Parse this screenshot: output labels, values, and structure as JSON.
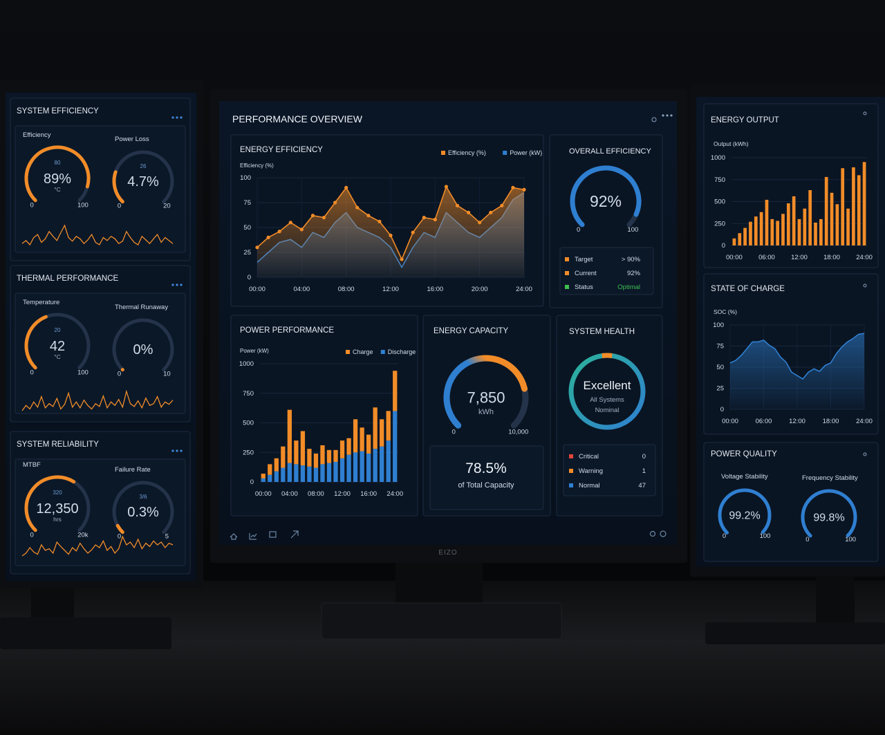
{
  "brand": "EIZO",
  "left_panels": [
    {
      "title": "SYSTEM EFFICIENCY",
      "gauges": [
        {
          "label": "Efficiency",
          "top_label": "80",
          "value": 89,
          "value_label": "89%",
          "unit": "°C",
          "min": 0,
          "max": 100,
          "color": "#f28c28"
        },
        {
          "label": "Power Loss",
          "top_label": "26",
          "value": 4.7,
          "value_label": "4.7%",
          "min": 0,
          "max": 20,
          "color": "#f28c28"
        }
      ],
      "sparkline": [
        40,
        45,
        38,
        50,
        55,
        42,
        48,
        60,
        52,
        45,
        58,
        70,
        50,
        44,
        52,
        48,
        40,
        46,
        55,
        42,
        38,
        50,
        45,
        52,
        48,
        40,
        44,
        60,
        50,
        42,
        38,
        52,
        46,
        40,
        48,
        55,
        42,
        50,
        45,
        40
      ],
      "color": "#f28c28"
    },
    {
      "title": "THERMAL PERFORMANCE",
      "gauges": [
        {
          "label": "Temperature",
          "top_label": "20",
          "value": 42,
          "unit": "°C",
          "min": 0,
          "max": 100,
          "color": "#f28c28"
        },
        {
          "label": "Thermal Runaway",
          "value": 0,
          "value_label": "0%",
          "min": 0,
          "max": 10,
          "color": "#f28c28"
        }
      ],
      "sparkline": [
        30,
        45,
        35,
        55,
        40,
        70,
        38,
        50,
        42,
        65,
        35,
        48,
        80,
        40,
        55,
        38,
        60,
        45,
        35,
        50,
        42,
        72,
        38,
        55,
        45,
        62,
        40,
        85,
        50,
        42,
        58,
        38,
        66,
        45,
        50,
        70,
        40,
        55,
        48,
        60
      ],
      "color": "#f28c28"
    },
    {
      "title": "SYSTEM RELIABILITY",
      "gauges": [
        {
          "label": "MTBF",
          "top_label": "320",
          "value": 12350,
          "value_label": "12,350",
          "unit": "hrs",
          "min": 0,
          "max": {
            "value": 20000,
            "label": "20k"
          },
          "color": "#f28c28"
        },
        {
          "label": "Failure Rate",
          "top_label": "3/6",
          "value": 0.3,
          "value_label": "0.3%",
          "min": 0,
          "max": 5,
          "color": "#f28c28"
        }
      ],
      "sparkline": [
        35,
        40,
        50,
        42,
        38,
        55,
        45,
        48,
        40,
        60,
        52,
        45,
        38,
        50,
        44,
        58,
        48,
        40,
        46,
        55,
        50,
        62,
        45,
        52,
        40,
        48,
        70,
        55,
        60,
        50,
        65,
        48,
        58,
        52,
        62,
        55,
        60,
        50,
        58,
        55
      ],
      "color": "#f28c28"
    }
  ],
  "center": {
    "title": "PERFORMANCE OVERVIEW",
    "energy_efficiency": {
      "type": "line",
      "title": "ENERGY EFFICIENCY",
      "y_label": "Efficiency (%)",
      "x": [
        0,
        1,
        2,
        3,
        4,
        5,
        6,
        7,
        8,
        9,
        10,
        11,
        12,
        13,
        14,
        15,
        16,
        17,
        18,
        19,
        20,
        21,
        22,
        23,
        24
      ],
      "series": [
        {
          "name": "Efficiency (%)",
          "color": "#f28c28",
          "markers": true,
          "values": [
            30,
            40,
            46,
            55,
            48,
            62,
            60,
            75,
            90,
            70,
            62,
            56,
            42,
            18,
            45,
            60,
            58,
            91,
            72,
            65,
            55,
            65,
            72,
            90,
            88
          ]
        },
        {
          "name": "Power (kW)",
          "color": "#2f7fd1",
          "values": [
            15,
            25,
            35,
            38,
            30,
            45,
            40,
            55,
            65,
            50,
            45,
            40,
            30,
            10,
            30,
            45,
            40,
            65,
            55,
            45,
            40,
            50,
            60,
            78,
            85
          ]
        }
      ],
      "xlim": [
        0,
        24
      ],
      "xticks": [
        {
          "value": 0,
          "label": "00:00"
        },
        {
          "value": 4,
          "label": "04:00"
        },
        {
          "value": 8,
          "label": "08:00"
        },
        {
          "value": 12,
          "label": "12:00"
        },
        {
          "value": 16,
          "label": "16:00"
        },
        {
          "value": 20,
          "label": "20:00"
        },
        {
          "value": 24,
          "label": "24:00"
        }
      ],
      "ylim": [
        0,
        100
      ],
      "yticks": [
        0,
        25,
        50,
        75,
        100
      ]
    },
    "overall_efficiency": {
      "title": "OVERALL EFFICIENCY",
      "value": 92,
      "value_label": "92%",
      "min": 0,
      "max": 100,
      "color": "#2f7fd1",
      "rows": [
        {
          "label": "Target",
          "value": "> 90%",
          "color": "#f28c28"
        },
        {
          "label": "Current",
          "value": "92%",
          "color": "#f28c28"
        },
        {
          "label": "Status",
          "value": "Optimal",
          "color": "#3fbf4f",
          "value_color": "#3fbf4f"
        }
      ]
    },
    "power_performance": {
      "type": "bar",
      "stacked": true,
      "title": "POWER PERFORMANCE",
      "y_label": "Power (kW)",
      "categories": [
        "00:00",
        null,
        null,
        null,
        "04:00",
        null,
        null,
        null,
        "08:00",
        null,
        null,
        null,
        "12:00",
        null,
        null,
        null,
        "16:00",
        null,
        null,
        null,
        "24:00"
      ],
      "series": [
        {
          "name": "Charge",
          "color": "#f28c28",
          "values": [
            40,
            90,
            110,
            180,
            450,
            200,
            290,
            150,
            120,
            160,
            110,
            100,
            150,
            140,
            280,
            200,
            160,
            350,
            230,
            250,
            340
          ]
        },
        {
          "name": "Discharge",
          "color": "#2f7fd1",
          "values": [
            30,
            60,
            90,
            120,
            160,
            150,
            140,
            130,
            120,
            150,
            160,
            170,
            200,
            230,
            250,
            260,
            240,
            280,
            300,
            350,
            600
          ]
        }
      ],
      "ylim": [
        0,
        1000
      ],
      "yticks": [
        0,
        250,
        500,
        750,
        1000
      ]
    },
    "energy_capacity": {
      "title": "ENERGY CAPACITY",
      "value": 7850,
      "value_label": "7,850",
      "unit": "kWh",
      "min": 0,
      "max": {
        "value": 10000,
        "label": "10,000"
      },
      "color": "#2f7fd1",
      "percent": 78.5,
      "percent_label": "78.5%",
      "caption": "of Total Capacity"
    },
    "system_health": {
      "title": "SYSTEM HEALTH",
      "status": "Excellent",
      "subtitle": [
        "All Systems",
        "Nominal"
      ],
      "rows": [
        {
          "label": "Critical",
          "value": 0,
          "color": "#e0463a"
        },
        {
          "label": "Warning",
          "value": 1,
          "color": "#f28c28"
        },
        {
          "label": "Normal",
          "value": 47,
          "color": "#2f7fd1"
        }
      ]
    }
  },
  "right_panels": {
    "energy_output": {
      "type": "bar",
      "title": "ENERGY OUTPUT",
      "y_label": "Output (kWh)",
      "categories": [
        "00:00",
        null,
        null,
        null,
        null,
        null,
        "06:00",
        null,
        null,
        null,
        null,
        null,
        "12:00",
        null,
        null,
        null,
        null,
        null,
        "18:00",
        null,
        null,
        null,
        null,
        null,
        "24:00"
      ],
      "values": [
        80,
        140,
        200,
        270,
        330,
        380,
        520,
        300,
        280,
        360,
        480,
        560,
        300,
        420,
        630,
        260,
        300,
        780,
        600,
        470,
        880,
        420,
        890,
        800,
        950
      ],
      "color": "#f28c28",
      "ylim": [
        0,
        1000
      ],
      "yticks": [
        0,
        250,
        500,
        750,
        1000
      ]
    },
    "state_of_charge": {
      "type": "line",
      "title": "STATE OF CHARGE",
      "y_label": "SOC (%)",
      "x": [
        0,
        1,
        2,
        3,
        4,
        5,
        6,
        7,
        8,
        9,
        10,
        11,
        12,
        13,
        14,
        15,
        16,
        17,
        18,
        19,
        20,
        21,
        22,
        23,
        24
      ],
      "values": [
        55,
        58,
        64,
        72,
        80,
        80,
        82,
        76,
        72,
        62,
        56,
        44,
        40,
        36,
        44,
        48,
        45,
        52,
        55,
        66,
        74,
        80,
        84,
        89,
        90
      ],
      "color": "#2f7fd1",
      "xlim": [
        0,
        24
      ],
      "xticks": [
        {
          "value": 0,
          "label": "00:00"
        },
        {
          "value": 6,
          "label": "06:00"
        },
        {
          "value": 12,
          "label": "12:00"
        },
        {
          "value": 18,
          "label": "18:00"
        },
        {
          "value": 24,
          "label": "24:00"
        }
      ],
      "ylim": [
        0,
        100
      ],
      "yticks": [
        0,
        25,
        50,
        75,
        100
      ]
    },
    "power_quality": {
      "title": "POWER QUALITY",
      "gauges": [
        {
          "label": "Voltage Stability",
          "value": 99.2,
          "value_label": "99.2%",
          "min": 0,
          "max": 100,
          "color": "#2f7fd1"
        },
        {
          "label": "Frequency Stability",
          "value": 99.8,
          "value_label": "99.8%",
          "min": 0,
          "max": 100,
          "color": "#2f7fd1"
        }
      ]
    }
  }
}
